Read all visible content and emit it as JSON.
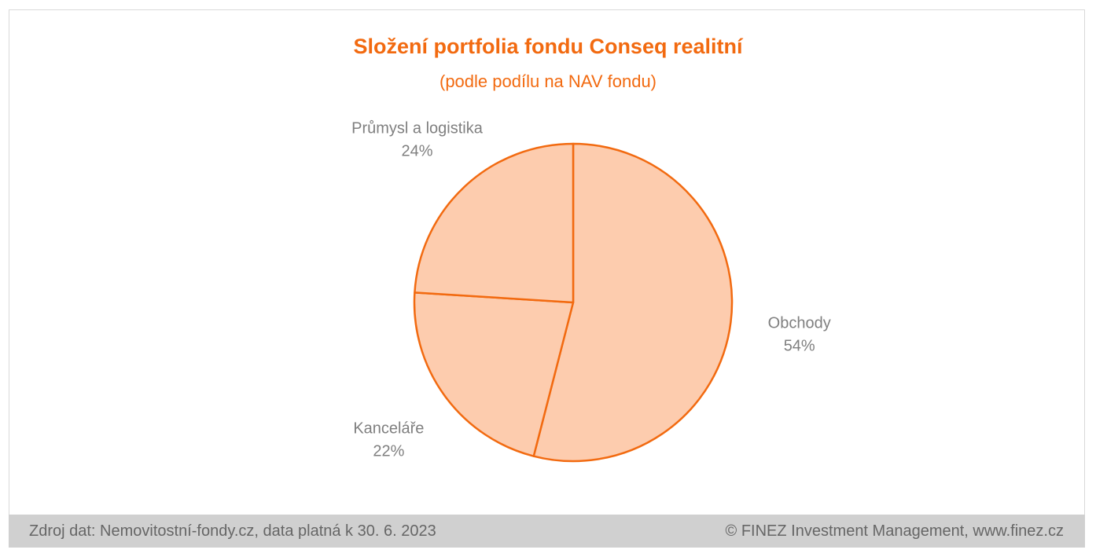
{
  "chart_data": {
    "type": "pie",
    "title": "Složení portfolia fondu Conseq realitní",
    "subtitle": "(podle podílu na NAV fondu)",
    "slices": [
      {
        "label": "Obchody",
        "value": 54,
        "value_label": "54%"
      },
      {
        "label": "Kanceláře",
        "value": 22,
        "value_label": "22%"
      },
      {
        "label": "Průmysl a logistika",
        "value": 24,
        "value_label": "24%"
      }
    ],
    "start_angle_deg": 0,
    "direction": "clockwise",
    "colors": {
      "fill": "#fdccae",
      "stroke": "#f26a10",
      "title": "#f26a10",
      "labels": "#7f7f7f"
    },
    "legend": "none"
  },
  "footer": {
    "source": "Zdroj dat: Nemovitostní-fondy.cz, data platná k 30. 6. 2023",
    "copyright": "© FINEZ Investment Management, www.finez.cz"
  }
}
